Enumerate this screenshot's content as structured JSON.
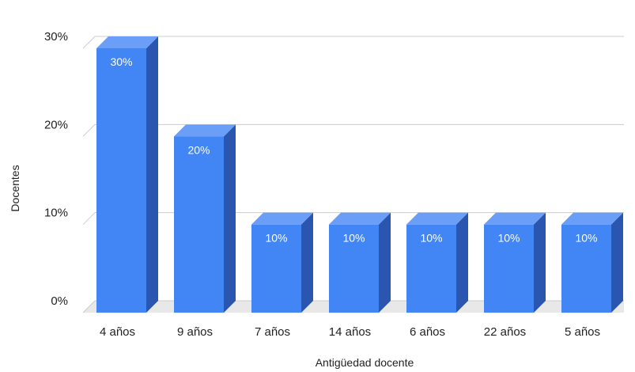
{
  "chart_data": {
    "type": "bar",
    "style": "3d",
    "categories": [
      "4 años",
      "9 años",
      "7 años",
      "14 años",
      "6 años",
      "22 años",
      "5 años"
    ],
    "values": [
      30,
      20,
      10,
      10,
      10,
      10,
      10
    ],
    "data_labels": [
      "30%",
      "20%",
      "10%",
      "10%",
      "10%",
      "10%",
      "10%"
    ],
    "xlabel": "Antigüedad docente",
    "ylabel": "Docentes",
    "yticks": [
      {
        "value": 0,
        "label": "0%"
      },
      {
        "value": 10,
        "label": "10%"
      },
      {
        "value": 20,
        "label": "20%"
      },
      {
        "value": 30,
        "label": "30%"
      }
    ],
    "ylim": [
      0,
      30
    ],
    "grid": true,
    "legend": "none",
    "colors": {
      "bar_front": "#4285f4",
      "bar_top": "#6b9ff7",
      "bar_side": "#2a56b0",
      "gridline": "#cccccc",
      "floor": "#e8e8e8"
    }
  }
}
